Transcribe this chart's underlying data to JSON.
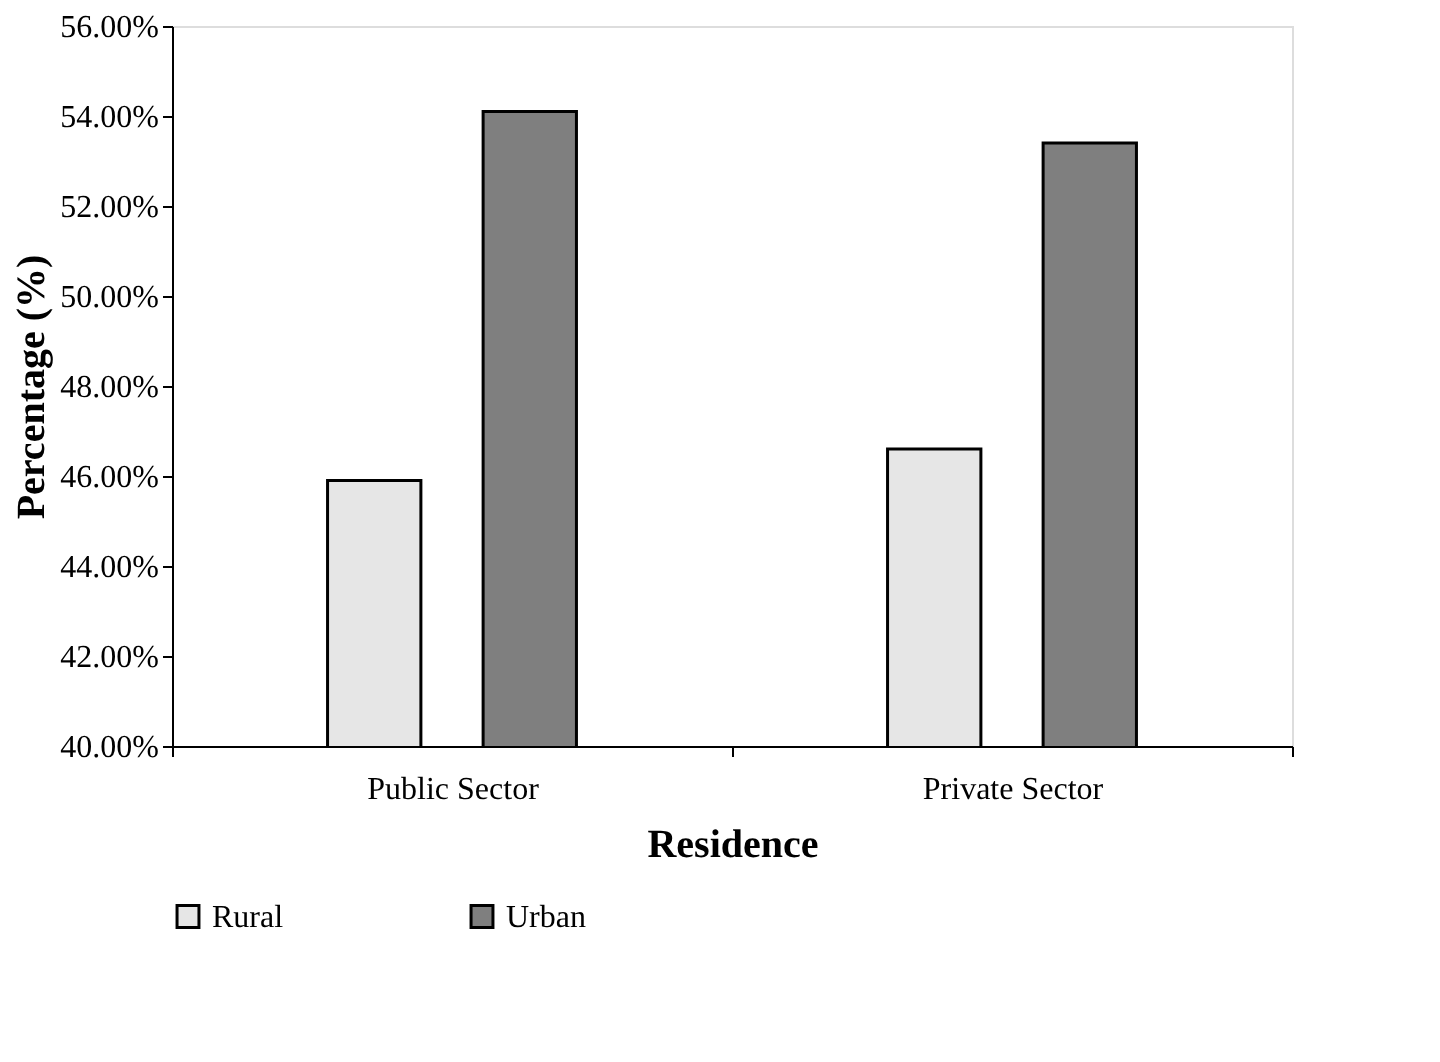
{
  "chart_data": {
    "type": "bar",
    "xlabel": "Residence",
    "ylabel": "Percentage (%)",
    "categories": [
      "Public Sector",
      "Private Sector"
    ],
    "series": [
      {
        "name": "Rural",
        "color": "#e6e6e6",
        "values": [
          45.9,
          46.6
        ]
      },
      {
        "name": "Urban",
        "color": "#7f7f7f",
        "values": [
          54.1,
          53.4
        ]
      }
    ],
    "ylim": [
      40,
      56
    ],
    "yticks": [
      {
        "value": 40,
        "label": "40.00%"
      },
      {
        "value": 42,
        "label": "42.00%"
      },
      {
        "value": 44,
        "label": "44.00%"
      },
      {
        "value": 46,
        "label": "46.00%"
      },
      {
        "value": 48,
        "label": "48.00%"
      },
      {
        "value": 50,
        "label": "50.00%"
      },
      {
        "value": 52,
        "label": "52.00%"
      },
      {
        "value": 54,
        "label": "54.00%"
      },
      {
        "value": 56,
        "label": "56.00%"
      }
    ],
    "grid": false,
    "legend": "bottom"
  }
}
